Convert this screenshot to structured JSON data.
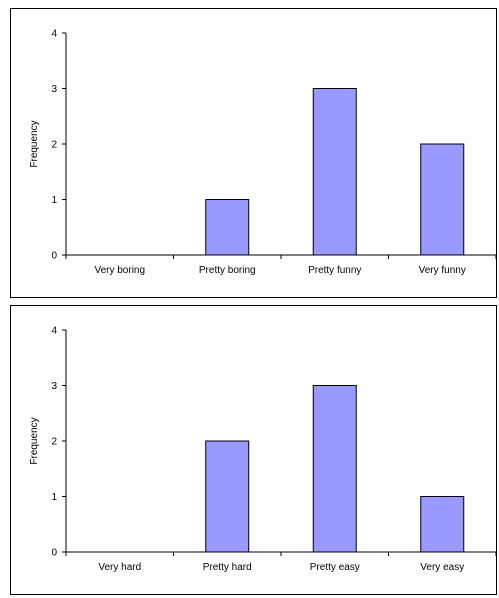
{
  "chart_data": [
    {
      "type": "bar",
      "categories": [
        "Very boring",
        "Pretty boring",
        "Pretty funny",
        "Very funny"
      ],
      "values": [
        0,
        1,
        3,
        2
      ],
      "title": "",
      "xlabel": "",
      "ylabel": "Frequency",
      "ylim": [
        0,
        4
      ],
      "yticks": [
        "0",
        "1",
        "2",
        "3",
        "4"
      ],
      "grid": false,
      "bar_color": "#9999ff"
    },
    {
      "type": "bar",
      "categories": [
        "Very hard",
        "Pretty hard",
        "Pretty easy",
        "Very easy"
      ],
      "values": [
        0,
        2,
        3,
        1
      ],
      "title": "",
      "xlabel": "",
      "ylabel": "Frequency",
      "ylim": [
        0,
        4
      ],
      "yticks": [
        "0",
        "1",
        "2",
        "3",
        "4"
      ],
      "grid": false,
      "bar_color": "#9999ff"
    }
  ]
}
